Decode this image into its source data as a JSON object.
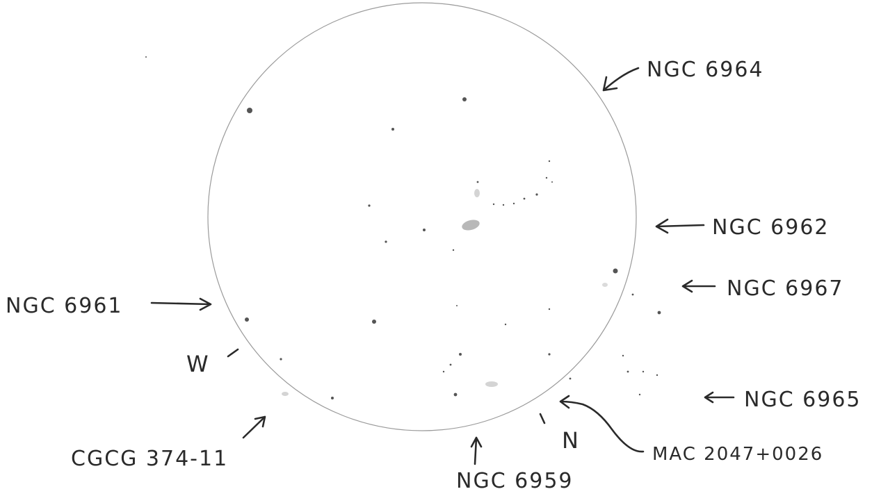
{
  "labels": {
    "ngc6964": "NGC 6964",
    "ngc6962": "NGC 6962",
    "ngc6967": "NGC 6967",
    "ngc6961": "NGC 6961",
    "ngc6965": "NGC 6965",
    "mac": "MAC 2047+0026",
    "cgcg": "CGCG 374-11",
    "ngc6959": "NGC 6959"
  },
  "directions": {
    "west": "W",
    "north": "N"
  },
  "colors": {
    "ink": "#2a2a2a",
    "field_circle": "#9a9a9a",
    "star": "#555555",
    "galaxy_smudge": "#b8b8b8"
  }
}
